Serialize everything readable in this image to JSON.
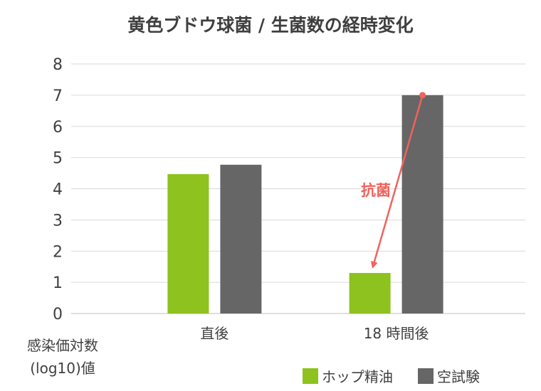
{
  "chart_data": {
    "type": "bar",
    "title": "黄色ブドウ球菌 / 生菌数の経時変化",
    "ylabel_line1": "感染価対数",
    "ylabel_line2": "(log10)値",
    "ylim": [
      0,
      8
    ],
    "yticks": [
      "0",
      "1",
      "2",
      "3",
      "4",
      "5",
      "6",
      "7",
      "8"
    ],
    "grid": true,
    "legend_position": "bottom-right",
    "categories": [
      "直後",
      "18 時間後"
    ],
    "series": [
      {
        "name": "ホップ精油",
        "values": [
          4.47,
          1.3
        ],
        "color": "#8dc21f"
      },
      {
        "name": "空試験",
        "values": [
          4.77,
          7.0
        ],
        "color": "#666666"
      }
    ],
    "annotation": {
      "text": "抗菌",
      "color": "#f0625d",
      "from": {
        "category": 1,
        "series": 1,
        "value": 7.0
      },
      "to": {
        "category": 1,
        "series": 0,
        "value": 1.3
      }
    }
  }
}
